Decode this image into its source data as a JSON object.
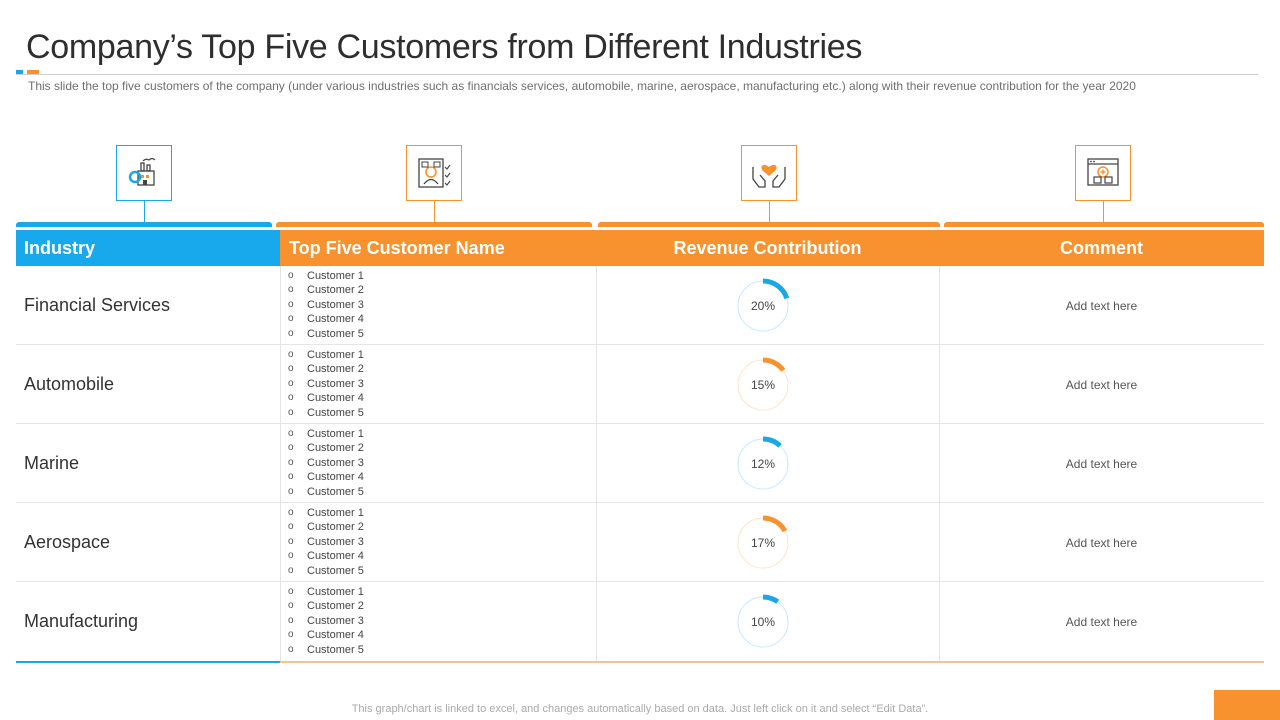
{
  "header": {
    "title": "Company’s Top Five Customers from Different Industries",
    "subtitle": "This slide the top five customers of the company (under various  industries such as financials services, automobile, marine, aerospace, manufacturing  etc.) along with their revenue  contribution for the year 2020"
  },
  "icons": [
    "factory-icon",
    "customer-profile-icon",
    "hands-heart-icon",
    "web-package-icon"
  ],
  "colors": {
    "blue": "#1aa7e8",
    "orange": "#f7922e"
  },
  "table": {
    "columns": [
      "Industry",
      "Top Five Customer Name",
      "Revenue Contribution",
      "Comment"
    ],
    "rows": [
      {
        "industry": "Financial Services",
        "customers": [
          "Customer 1",
          "Customer 2",
          "Customer 3",
          "Customer 4",
          "Customer 5"
        ],
        "revenue_label": "20%",
        "revenue_value": 20,
        "color": "blue",
        "comment": "Add text here"
      },
      {
        "industry": "Automobile",
        "customers": [
          "Customer 1",
          "Customer 2",
          "Customer 3",
          "Customer 4",
          "Customer 5"
        ],
        "revenue_label": "15%",
        "revenue_value": 15,
        "color": "orange",
        "comment": "Add text here"
      },
      {
        "industry": "Marine",
        "customers": [
          "Customer 1",
          "Customer 2",
          "Customer 3",
          "Customer 4",
          "Customer 5"
        ],
        "revenue_label": "12%",
        "revenue_value": 12,
        "color": "blue",
        "comment": "Add text here"
      },
      {
        "industry": "Aerospace",
        "customers": [
          "Customer 1",
          "Customer 2",
          "Customer 3",
          "Customer 4",
          "Customer 5"
        ],
        "revenue_label": "17%",
        "revenue_value": 17,
        "color": "orange",
        "comment": "Add text here"
      },
      {
        "industry": "Manufacturing",
        "customers": [
          "Customer 1",
          "Customer 2",
          "Customer 3",
          "Customer 4",
          "Customer 5"
        ],
        "revenue_label": "10%",
        "revenue_value": 10,
        "color": "blue",
        "comment": "Add text here"
      }
    ]
  },
  "footer": {
    "note": "This graph/chart is linked to excel,  and changes automatically based on data. Just left click on it and select “Edit Data”."
  }
}
